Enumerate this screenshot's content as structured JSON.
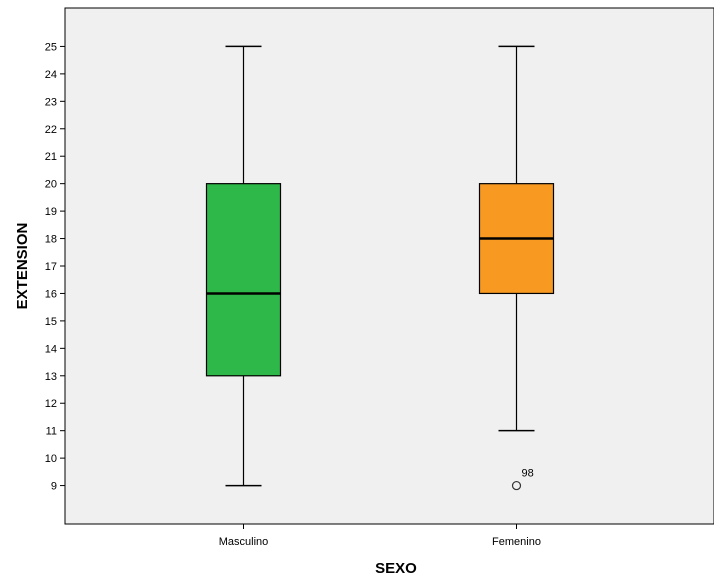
{
  "chart_data": {
    "type": "boxplot",
    "xlabel": "SEXO",
    "ylabel": "EXTENSION",
    "categories": [
      "Masculino",
      "Femenino"
    ],
    "yticks": [
      9,
      10,
      11,
      12,
      13,
      14,
      15,
      16,
      17,
      18,
      19,
      20,
      21,
      22,
      23,
      24,
      25
    ],
    "ylim": [
      7.6,
      26.4
    ],
    "grid": false,
    "legend": "none",
    "plot_background": "#f0f0f0",
    "boxes": [
      {
        "category": "Masculino",
        "min": 9,
        "q1": 13,
        "median": 16,
        "q3": 20,
        "max": 25,
        "color": "#2eb84a",
        "outliers": []
      },
      {
        "category": "Femenino",
        "min": 11,
        "q1": 16,
        "median": 18,
        "q3": 20,
        "max": 25,
        "color": "#f89a22",
        "outliers": [
          {
            "value": 9,
            "label": "98"
          }
        ]
      }
    ]
  }
}
